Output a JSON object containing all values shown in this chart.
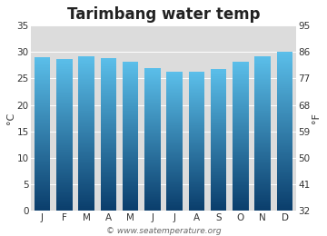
{
  "title": "Tarimbang water temp",
  "months": [
    "J",
    "F",
    "M",
    "A",
    "M",
    "J",
    "J",
    "A",
    "S",
    "O",
    "N",
    "D"
  ],
  "values_c": [
    29.0,
    28.7,
    29.2,
    28.8,
    28.1,
    27.0,
    26.2,
    26.2,
    26.8,
    28.2,
    29.2,
    30.0
  ],
  "ylim_c": [
    0,
    35
  ],
  "yticks_c": [
    0,
    5,
    10,
    15,
    20,
    25,
    30,
    35
  ],
  "yticks_f": [
    32,
    41,
    50,
    59,
    68,
    77,
    86,
    95
  ],
  "ylabel_left": "°C",
  "ylabel_right": "°F",
  "bar_color_top": "#5bbfea",
  "bar_color_bottom": "#0a3d6b",
  "plot_bg_color": "#dcdcdc",
  "fig_bg_color": "#ffffff",
  "watermark": "© www.seatemperature.org",
  "title_fontsize": 12,
  "label_fontsize": 8,
  "tick_fontsize": 7.5,
  "watermark_fontsize": 6.5,
  "bar_width": 0.72,
  "grad_steps": 200
}
